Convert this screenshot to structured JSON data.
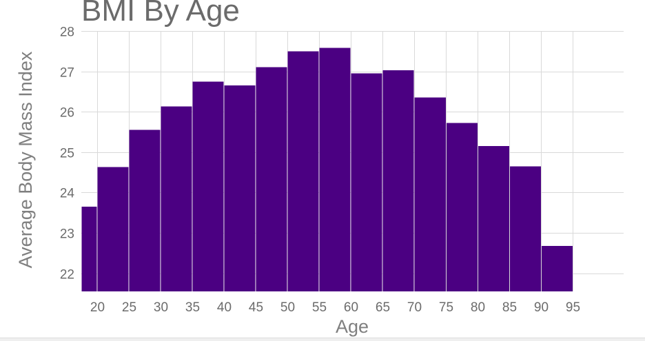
{
  "chart_data": {
    "type": "bar",
    "title": "BMI By Age",
    "xlabel": "Age",
    "ylabel": "Average Body Mass Index",
    "bar_color": "#4b0082",
    "grid": true,
    "ylim": [
      21.55,
      28
    ],
    "yticks": [
      22,
      23,
      24,
      25,
      26,
      27,
      28
    ],
    "xlim": [
      17.5,
      103
    ],
    "xticks": [
      20,
      25,
      30,
      35,
      40,
      45,
      50,
      55,
      60,
      65,
      70,
      75,
      80,
      85,
      90,
      95
    ],
    "bins": [
      {
        "x0": 17.5,
        "x1": 20,
        "value": 23.65
      },
      {
        "x0": 20,
        "x1": 25,
        "value": 24.63
      },
      {
        "x0": 25,
        "x1": 30,
        "value": 25.55
      },
      {
        "x0": 30,
        "x1": 35,
        "value": 26.13
      },
      {
        "x0": 35,
        "x1": 40,
        "value": 26.75
      },
      {
        "x0": 40,
        "x1": 45,
        "value": 26.65
      },
      {
        "x0": 45,
        "x1": 50,
        "value": 27.1
      },
      {
        "x0": 50,
        "x1": 55,
        "value": 27.5
      },
      {
        "x0": 55,
        "x1": 60,
        "value": 27.58
      },
      {
        "x0": 60,
        "x1": 65,
        "value": 26.95
      },
      {
        "x0": 65,
        "x1": 70,
        "value": 27.03
      },
      {
        "x0": 70,
        "x1": 75,
        "value": 26.35
      },
      {
        "x0": 75,
        "x1": 80,
        "value": 25.72
      },
      {
        "x0": 80,
        "x1": 85,
        "value": 25.15
      },
      {
        "x0": 85,
        "x1": 90,
        "value": 24.65
      },
      {
        "x0": 90,
        "x1": 95,
        "value": 22.68
      }
    ]
  }
}
